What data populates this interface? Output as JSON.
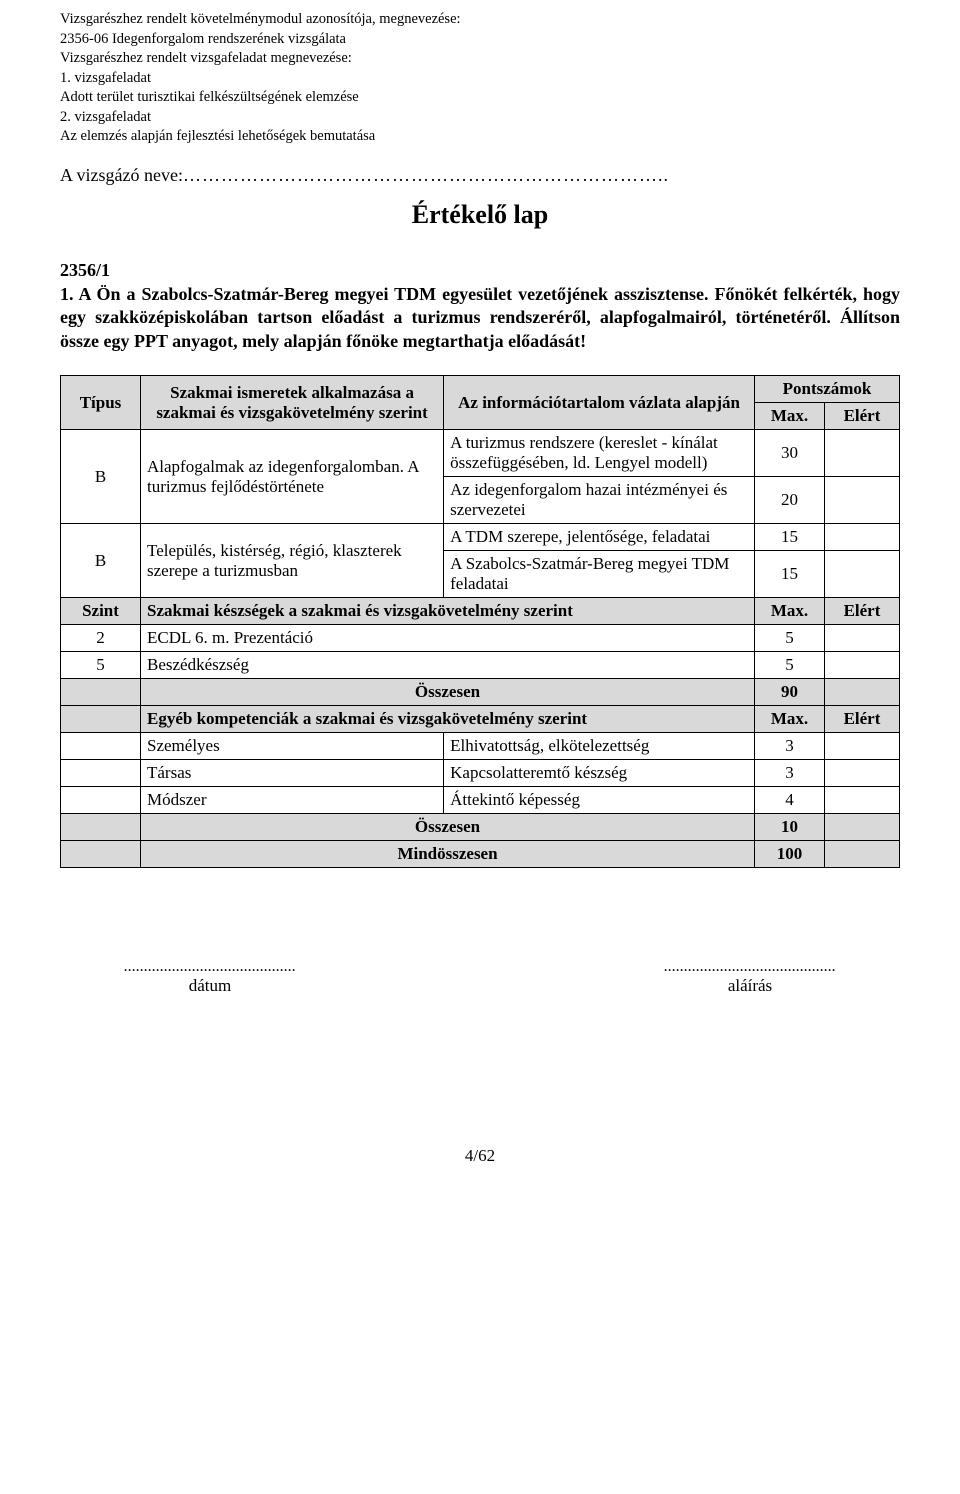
{
  "header": {
    "line1": "Vizsgarészhez rendelt követelménymodul azonosítója, megnevezése:",
    "line2": "2356-06 Idegenforgalom rendszerének vizsgálata",
    "line3": "Vizsgarészhez rendelt vizsgafeladat megnevezése:",
    "line4": "1. vizsgafeladat",
    "line5": "Adott terület turisztikai felkészültségének elemzése",
    "line6": "2. vizsgafeladat",
    "line7": "Az elemzés alapján fejlesztési lehetőségek bemutatása"
  },
  "examinee_label": "A vizsgázó neve:",
  "examinee_dots": "…………………………………………………………………..",
  "title": "Értékelő lap",
  "task_code": "2356/1",
  "task_text": "1. A   Ön a Szabolcs-Szatmár-Bereg megyei TDM egyesület vezetőjének asszisztense. Főnökét felkérték, hogy egy szakközépiskolában tartson előadást a turizmus rendszeréről, alapfogalmairól, történetéről. Állítson össze egy PPT anyagot, mely alapján főnöke megtarthatja előadását!",
  "table": {
    "h_tipus": "Típus",
    "h_szakmai": "Szakmai ismeretek alkalmazása a szakmai és vizsgakövetelmény szerint",
    "h_info": "Az információtartalom vázlata alapján",
    "h_pont": "Pontszámok",
    "h_max": "Max.",
    "h_elert": "Elért",
    "r1_type": "B",
    "r1_szak": "Alapfogalmak az idegenforgalomban. A turizmus fejlődéstörténete",
    "r1a_info": "A turizmus rendszere (kereslet - kínálat összefüggésében, ld. Lengyel modell)",
    "r1a_max": "30",
    "r1b_info": "Az idegenforgalom hazai intézményei és szervezetei",
    "r1b_max": "20",
    "r2_type": "B",
    "r2_szak": "Település, kistérség, régió, klaszterek szerepe a turizmusban",
    "r2a_info": "A TDM szerepe, jelentősége, feladatai",
    "r2a_max": "15",
    "r2b_info": "A Szabolcs-Szatmár-Bereg megyei TDM feladatai",
    "r2b_max": "15",
    "szint_label": "Szint",
    "szint_heading": "Szakmai készségek a szakmai és vizsgakövetelmény szerint",
    "szint_max": "Max.",
    "szint_elert": "Elért",
    "sk1_lvl": "2",
    "sk1_label": "ECDL 6. m. Prezentáció",
    "sk1_max": "5",
    "sk2_lvl": "5",
    "sk2_label": "Beszédkészség",
    "sk2_max": "5",
    "osszesen1": "Összesen",
    "osszesen1_val": "90",
    "egyeb_heading": "Egyéb kompetenciák a szakmai és vizsgakövetelmény szerint",
    "egyeb_max": "Max.",
    "egyeb_elert": "Elért",
    "e1_cat": "Személyes",
    "e1_label": "Elhivatottság, elkötelezettség",
    "e1_max": "3",
    "e2_cat": "Társas",
    "e2_label": "Kapcsolatteremtő készség",
    "e2_max": "3",
    "e3_cat": "Módszer",
    "e3_label": "Áttekintő képesség",
    "e3_max": "4",
    "osszesen2": "Összesen",
    "osszesen2_val": "10",
    "mindosszesen": "Mindösszesen",
    "mindosszesen_val": "100"
  },
  "sig": {
    "dots": "...........................................",
    "date": "dátum",
    "sign": "aláírás"
  },
  "page_num": "4/62",
  "colors": {
    "grey": "#d9d9d9",
    "text": "#000000",
    "bg": "#ffffff",
    "border": "#000000"
  }
}
